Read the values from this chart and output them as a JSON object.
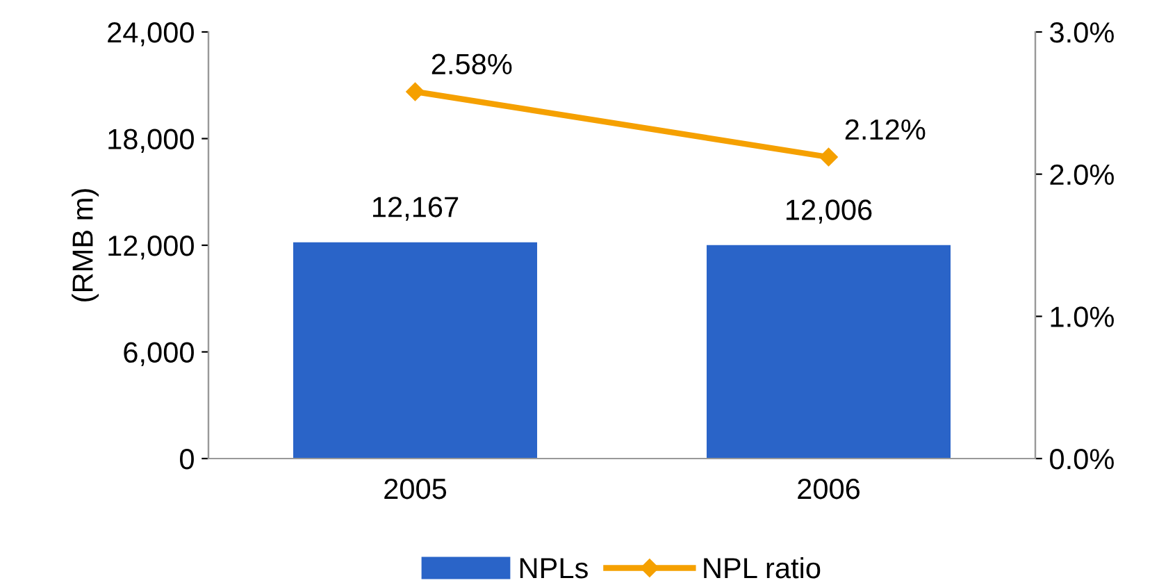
{
  "chart_data": {
    "type": "bar",
    "ylabel": "(RMB m)",
    "categories": [
      "2005",
      "2006"
    ],
    "series": [
      {
        "name": "NPLs",
        "color": "#2a64c8",
        "values": [
          12167,
          12006
        ],
        "value_labels": [
          "12,167",
          "12,006"
        ]
      },
      {
        "name": "NPL ratio",
        "type": "line",
        "axis": "y2",
        "color": "#f5a000",
        "values": [
          2.58,
          2.12
        ],
        "value_labels": [
          "2.58%",
          "2.12%"
        ],
        "marker": "diamond",
        "line_style": "solid"
      }
    ],
    "ylim": [
      0,
      24000
    ],
    "yticks": [
      {
        "value": 0,
        "label": "0"
      },
      {
        "value": 6000,
        "label": "6,000"
      },
      {
        "value": 12000,
        "label": "12,000"
      },
      {
        "value": 18000,
        "label": "18,000"
      },
      {
        "value": 24000,
        "label": "24,000"
      }
    ],
    "y2lim": [
      0,
      3
    ],
    "y2ticks": [
      {
        "value": 0,
        "label": "0.0%"
      },
      {
        "value": 1,
        "label": "1.0%"
      },
      {
        "value": 2,
        "label": "2.0%"
      },
      {
        "value": 3,
        "label": "3.0%"
      }
    ],
    "legend": "bottom",
    "grid": false
  }
}
